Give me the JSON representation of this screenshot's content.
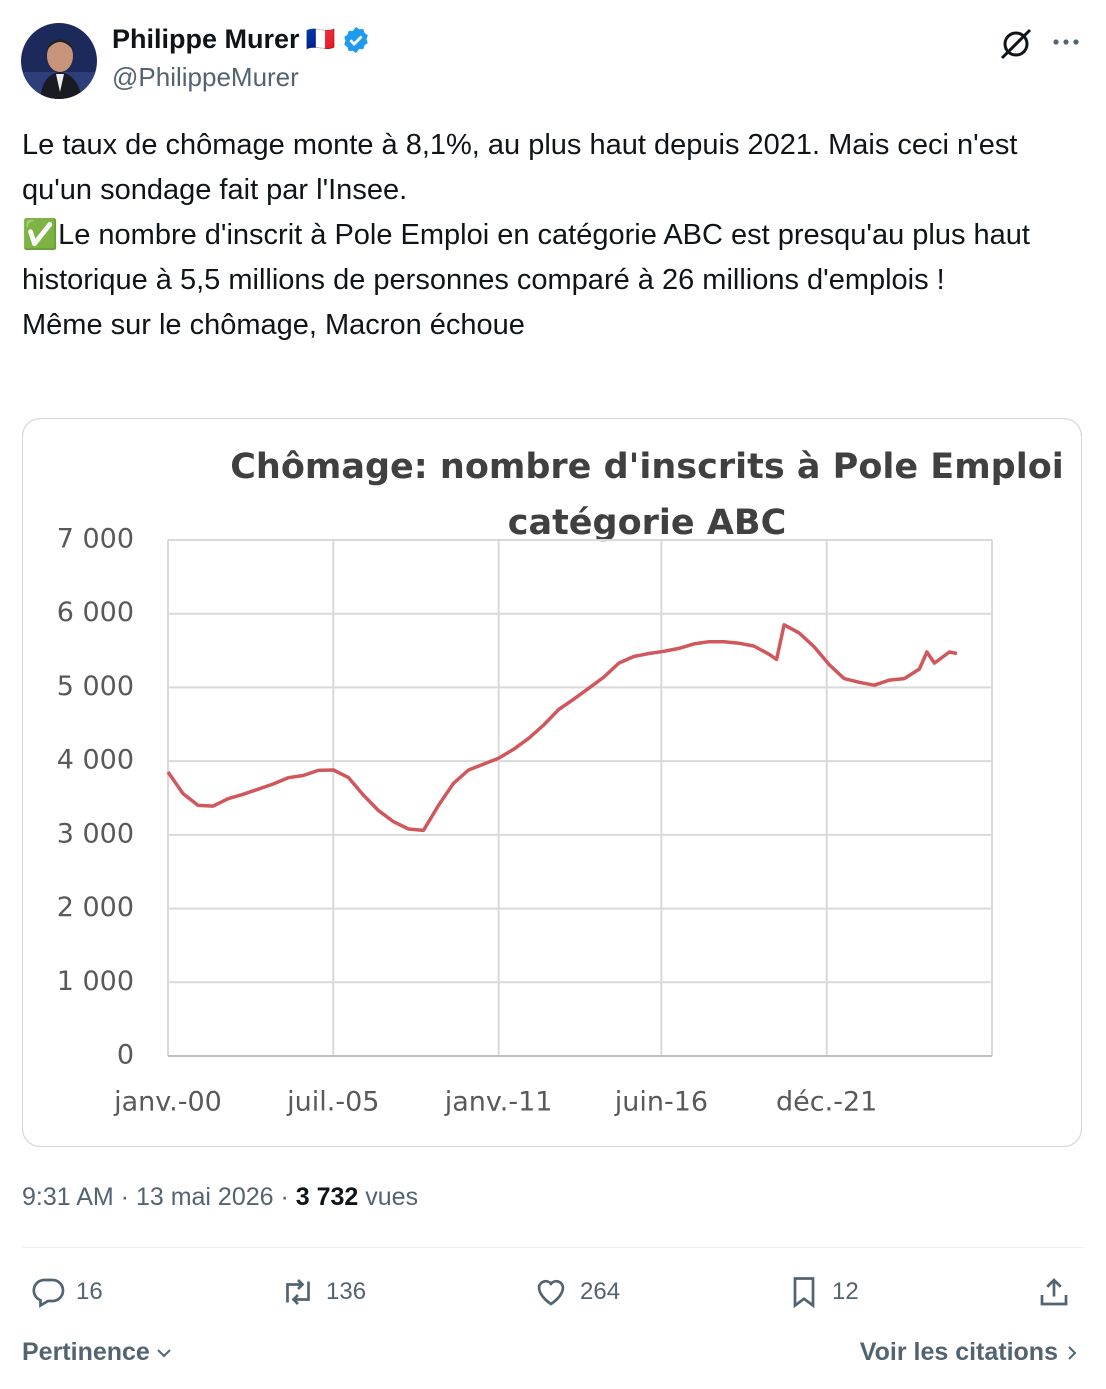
{
  "author": {
    "name": "Philippe Murer",
    "flag": "🇫🇷",
    "handle": "@PhilippeMurer"
  },
  "text": [
    "Le taux de chômage monte à 8,1%, au plus haut depuis 2021. Mais ceci n'est qu'un sondage fait par l'Insee.",
    "✅Le nombre d'inscrit à Pole Emploi en catégorie ABC est presqu'au plus haut historique à 5,5 millions de personnes comparé à 26 millions d'emplois !",
    "Même sur le chômage, Macron échoue"
  ],
  "chart_data": {
    "type": "line",
    "title": [
      "Chômage: nombre d'inscrits à Pole Emploi",
      "catégorie ABC"
    ],
    "x": [
      "2000-01",
      "2000-07",
      "2001-01",
      "2001-07",
      "2002-01",
      "2002-07",
      "2003-01",
      "2003-07",
      "2004-01",
      "2004-07",
      "2005-01",
      "2005-07",
      "2006-01",
      "2006-07",
      "2007-01",
      "2007-07",
      "2008-01",
      "2008-07",
      "2009-01",
      "2009-07",
      "2010-01",
      "2010-07",
      "2011-01",
      "2011-07",
      "2012-01",
      "2012-07",
      "2013-01",
      "2013-07",
      "2014-01",
      "2014-07",
      "2015-01",
      "2015-07",
      "2016-01",
      "2016-07",
      "2017-01",
      "2017-07",
      "2018-01",
      "2018-07",
      "2019-01",
      "2019-07",
      "2020-01",
      "2020-04",
      "2020-07",
      "2021-01",
      "2021-07",
      "2022-01",
      "2022-07",
      "2023-01",
      "2023-07",
      "2024-01",
      "2024-07",
      "2025-01",
      "2025-04",
      "2025-07",
      "2026-01",
      "2026-04"
    ],
    "values": [
      3853,
      3560,
      3400,
      3390,
      3490,
      3550,
      3620,
      3690,
      3775,
      3805,
      3875,
      3880,
      3780,
      3540,
      3330,
      3180,
      3080,
      3060,
      3400,
      3700,
      3880,
      3960,
      4040,
      4160,
      4310,
      4490,
      4700,
      4840,
      4990,
      5140,
      5330,
      5420,
      5460,
      5490,
      5530,
      5590,
      5620,
      5620,
      5600,
      5560,
      5450,
      5380,
      5850,
      5740,
      5550,
      5310,
      5120,
      5070,
      5030,
      5100,
      5120,
      5250,
      5480,
      5330,
      5480,
      5460
    ],
    "color": "#d0575c",
    "xlim": [
      "2000-01",
      "2027-06"
    ],
    "xticks": [
      {
        "value": "2000-01",
        "label": "janv.-00"
      },
      {
        "value": "2005-07",
        "label": "juil.-05"
      },
      {
        "value": "2011-01",
        "label": "janv.-11"
      },
      {
        "value": "2016-06",
        "label": "juin-16"
      },
      {
        "value": "2021-12",
        "label": "déc.-21"
      }
    ],
    "ylim": [
      0,
      7000
    ],
    "yticks": [
      0,
      {
        "value": 1000,
        "label": "1 000"
      },
      {
        "value": 2000,
        "label": "2 000"
      },
      {
        "value": 3000,
        "label": "3 000"
      },
      {
        "value": 4000,
        "label": "4 000"
      },
      {
        "value": 5000,
        "label": "5 000"
      },
      {
        "value": 6000,
        "label": "6 000"
      },
      {
        "value": 7000,
        "label": "7 000"
      }
    ],
    "grid": true
  },
  "meta": {
    "timestamp": "9:31 AM · 13 mai 2026 ·",
    "views": "3 732",
    "views_label": "vues"
  },
  "actions": {
    "replies": "16",
    "reposts": "136",
    "likes": "264",
    "bookmarks": "12"
  },
  "footer": {
    "sort": "Pertinence",
    "quotes": "Voir les citations"
  }
}
